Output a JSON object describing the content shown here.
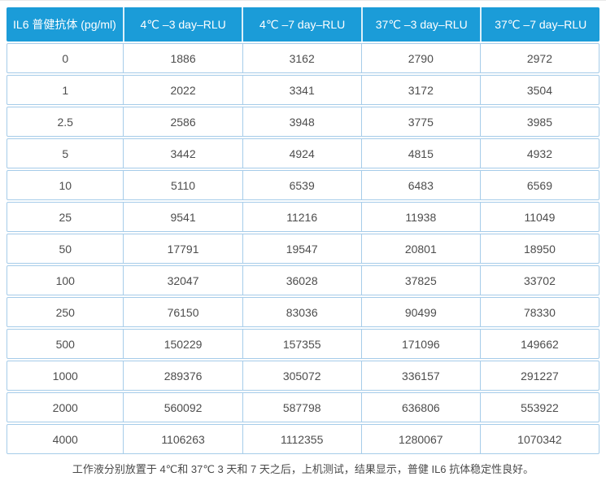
{
  "chart_data": {
    "type": "table",
    "title": "IL6 antibody stability RLU table",
    "columns": [
      "IL6 普健抗体 (pg/ml)",
      "4℃ –3 day–RLU",
      "4℃ –7 day–RLU",
      "37℃ –3 day–RLU",
      "37℃ –7 day–RLU"
    ],
    "rows": [
      [
        "0",
        "1886",
        "3162",
        "2790",
        "2972"
      ],
      [
        "1",
        "2022",
        "3341",
        "3172",
        "3504"
      ],
      [
        "2.5",
        "2586",
        "3948",
        "3775",
        "3985"
      ],
      [
        "5",
        "3442",
        "4924",
        "4815",
        "4932"
      ],
      [
        "10",
        "5110",
        "6539",
        "6483",
        "6569"
      ],
      [
        "25",
        "9541",
        "11216",
        "11938",
        "11049"
      ],
      [
        "50",
        "17791",
        "19547",
        "20801",
        "18950"
      ],
      [
        "100",
        "32047",
        "36028",
        "37825",
        "33702"
      ],
      [
        "250",
        "76150",
        "83036",
        "90499",
        "78330"
      ],
      [
        "500",
        "150229",
        "157355",
        "171096",
        "149662"
      ],
      [
        "1000",
        "289376",
        "305072",
        "336157",
        "291227"
      ],
      [
        "2000",
        "560092",
        "587798",
        "636806",
        "553922"
      ],
      [
        "4000",
        "1106263",
        "1112355",
        "1280067",
        "1070342"
      ]
    ]
  },
  "footnote": "工作液分别放置于 4℃和 37℃ 3 天和 7 天之后，上机测试，结果显示，普健 IL6 抗体稳定性良好。",
  "colors": {
    "header_bg": "#1b9cd8",
    "header_text": "#ffffff",
    "cell_border": "#a6cce9",
    "cell_text": "#4d4d4d"
  }
}
